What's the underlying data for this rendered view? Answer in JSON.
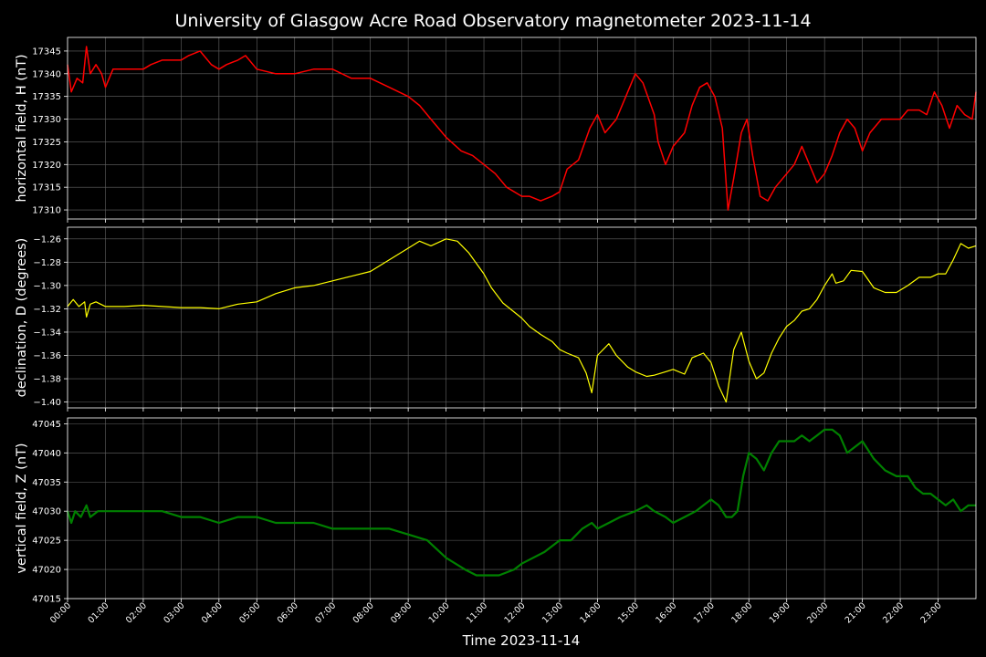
{
  "title": "University of Glasgow Acre Road Observatory magnetometer 2023-11-14",
  "xlabel": "Time 2023-11-14",
  "x_ticks": [
    "00:00",
    "01:00",
    "02:00",
    "03:00",
    "04:00",
    "05:00",
    "06:00",
    "07:00",
    "08:00",
    "09:00",
    "10:00",
    "11:00",
    "12:00",
    "13:00",
    "14:00",
    "15:00",
    "16:00",
    "17:00",
    "18:00",
    "19:00",
    "20:00",
    "21:00",
    "22:00",
    "23:00"
  ],
  "colors": {
    "background": "#000000",
    "axes": "#ffffff",
    "grid": "#666666",
    "H": "#ff0000",
    "D": "#ffff00",
    "Z": "#008000"
  },
  "chart_data": [
    {
      "type": "line",
      "ylabel": "horizontal field, H (nT)",
      "xlim": [
        0,
        24
      ],
      "ylim": [
        17308,
        17348
      ],
      "yticks": [
        17310,
        17315,
        17320,
        17325,
        17330,
        17335,
        17340,
        17345
      ],
      "grid": true,
      "series": [
        {
          "color": "#ff0000",
          "x": [
            0,
            0.1,
            0.25,
            0.4,
            0.5,
            0.6,
            0.75,
            0.9,
            1.0,
            1.2,
            1.5,
            1.8,
            2.0,
            2.2,
            2.5,
            2.8,
            3.0,
            3.2,
            3.5,
            3.8,
            4.0,
            4.2,
            4.5,
            4.7,
            5.0,
            5.5,
            6.0,
            6.5,
            7.0,
            7.5,
            8.0,
            8.5,
            9.0,
            9.3,
            9.6,
            10.0,
            10.4,
            10.7,
            11.0,
            11.3,
            11.6,
            12.0,
            12.2,
            12.5,
            12.8,
            13.0,
            13.2,
            13.5,
            13.8,
            14.0,
            14.2,
            14.5,
            14.8,
            15.0,
            15.2,
            15.5,
            15.6,
            15.8,
            16.0,
            16.3,
            16.5,
            16.7,
            16.9,
            17.1,
            17.3,
            17.45,
            17.6,
            17.8,
            17.95,
            18.1,
            18.3,
            18.5,
            18.7,
            19.0,
            19.2,
            19.4,
            19.6,
            19.8,
            20.0,
            20.2,
            20.4,
            20.6,
            20.8,
            21.0,
            21.2,
            21.5,
            21.8,
            22.0,
            22.2,
            22.5,
            22.7,
            22.9,
            23.1,
            23.3,
            23.5,
            23.7,
            23.9,
            24.0
          ],
          "y": [
            17342,
            17336,
            17339,
            17338,
            17346,
            17340,
            17342,
            17340,
            17337,
            17341,
            17341,
            17341,
            17341,
            17342,
            17343,
            17343,
            17343,
            17344,
            17345,
            17342,
            17341,
            17342,
            17343,
            17344,
            17341,
            17340,
            17340,
            17341,
            17341,
            17339,
            17339,
            17337,
            17335,
            17333,
            17330,
            17326,
            17323,
            17322,
            17320,
            17318,
            17315,
            17313,
            17313,
            17312,
            17313,
            17314,
            17319,
            17321,
            17328,
            17331,
            17327,
            17330,
            17336,
            17340,
            17338,
            17331,
            17325,
            17320,
            17324,
            17327,
            17333,
            17337,
            17338,
            17335,
            17328,
            17310,
            17317,
            17327,
            17330,
            17322,
            17313,
            17312,
            17315,
            17318,
            17320,
            17324,
            17320,
            17316,
            17318,
            17322,
            17327,
            17330,
            17328,
            17323,
            17327,
            17330,
            17330,
            17330,
            17332,
            17332,
            17331,
            17336,
            17333,
            17328,
            17333,
            17331,
            17330,
            17336
          ],
          "linewidth": 1.5
        }
      ]
    },
    {
      "type": "line",
      "ylabel": "declination, D (degrees)",
      "xlim": [
        0,
        24
      ],
      "ylim": [
        -1.405,
        -1.25
      ],
      "yticks": [
        -1.4,
        -1.38,
        -1.36,
        -1.34,
        -1.32,
        -1.3,
        -1.28,
        -1.26
      ],
      "yticklabels": [
        "−1.40",
        "−1.38",
        "−1.36",
        "−1.34",
        "−1.32",
        "−1.30",
        "−1.28",
        "−1.26"
      ],
      "grid": true,
      "series": [
        {
          "color": "#ffff00",
          "x": [
            0,
            0.15,
            0.3,
            0.45,
            0.5,
            0.6,
            0.75,
            1.0,
            1.5,
            2.0,
            2.5,
            3.0,
            3.5,
            4.0,
            4.5,
            5.0,
            5.5,
            6.0,
            6.5,
            7.0,
            7.5,
            8.0,
            8.5,
            9.0,
            9.3,
            9.6,
            10.0,
            10.3,
            10.6,
            11.0,
            11.2,
            11.5,
            12.0,
            12.2,
            12.5,
            12.8,
            13.0,
            13.2,
            13.5,
            13.7,
            13.85,
            14.0,
            14.3,
            14.5,
            14.8,
            15.0,
            15.3,
            15.5,
            15.8,
            16.0,
            16.3,
            16.5,
            16.8,
            17.0,
            17.2,
            17.4,
            17.6,
            17.8,
            18.0,
            18.2,
            18.4,
            18.6,
            18.8,
            19.0,
            19.2,
            19.4,
            19.6,
            19.8,
            20.0,
            20.2,
            20.3,
            20.5,
            20.7,
            21.0,
            21.3,
            21.6,
            21.9,
            22.2,
            22.5,
            22.8,
            23.0,
            23.2,
            23.4,
            23.6,
            23.8,
            24.0
          ],
          "y": [
            -1.318,
            -1.312,
            -1.318,
            -1.314,
            -1.327,
            -1.316,
            -1.314,
            -1.318,
            -1.318,
            -1.317,
            -1.318,
            -1.319,
            -1.319,
            -1.32,
            -1.316,
            -1.314,
            -1.307,
            -1.302,
            -1.3,
            -1.296,
            -1.292,
            -1.288,
            -1.278,
            -1.268,
            -1.262,
            -1.266,
            -1.26,
            -1.262,
            -1.272,
            -1.29,
            -1.302,
            -1.315,
            -1.328,
            -1.335,
            -1.342,
            -1.348,
            -1.355,
            -1.358,
            -1.362,
            -1.375,
            -1.392,
            -1.36,
            -1.35,
            -1.36,
            -1.37,
            -1.374,
            -1.378,
            -1.377,
            -1.374,
            -1.372,
            -1.376,
            -1.362,
            -1.358,
            -1.366,
            -1.386,
            -1.4,
            -1.355,
            -1.34,
            -1.365,
            -1.38,
            -1.375,
            -1.358,
            -1.345,
            -1.335,
            -1.33,
            -1.322,
            -1.32,
            -1.312,
            -1.3,
            -1.29,
            -1.298,
            -1.296,
            -1.287,
            -1.288,
            -1.302,
            -1.306,
            -1.306,
            -1.3,
            -1.293,
            -1.293,
            -1.29,
            -1.29,
            -1.278,
            -1.264,
            -1.268,
            -1.266
          ],
          "linewidth": 1.2
        }
      ]
    },
    {
      "type": "line",
      "ylabel": "vertical field, Z (nT)",
      "xlim": [
        0,
        24
      ],
      "ylim": [
        47015,
        47046
      ],
      "yticks": [
        47015,
        47020,
        47025,
        47030,
        47035,
        47040,
        47045
      ],
      "grid": true,
      "series": [
        {
          "color": "#008000",
          "x": [
            0,
            0.1,
            0.2,
            0.35,
            0.5,
            0.6,
            0.8,
            1.0,
            1.5,
            2.0,
            2.5,
            3.0,
            3.5,
            4.0,
            4.5,
            5.0,
            5.5,
            6.0,
            6.5,
            7.0,
            7.5,
            8.0,
            8.5,
            9.0,
            9.5,
            10.0,
            10.5,
            10.8,
            11.0,
            11.4,
            11.8,
            12.0,
            12.3,
            12.6,
            13.0,
            13.3,
            13.6,
            13.85,
            14.0,
            14.3,
            14.6,
            15.0,
            15.3,
            15.5,
            15.8,
            16.0,
            16.3,
            16.6,
            16.8,
            17.0,
            17.2,
            17.4,
            17.55,
            17.7,
            17.85,
            18.0,
            18.2,
            18.4,
            18.6,
            18.8,
            19.0,
            19.2,
            19.4,
            19.6,
            19.8,
            20.0,
            20.2,
            20.4,
            20.6,
            20.8,
            21.0,
            21.3,
            21.6,
            21.9,
            22.2,
            22.4,
            22.6,
            22.8,
            23.0,
            23.2,
            23.4,
            23.6,
            23.8,
            24.0
          ],
          "y": [
            47030,
            47028,
            47030,
            47029,
            47031,
            47029,
            47030,
            47030,
            47030,
            47030,
            47030,
            47029,
            47029,
            47028,
            47029,
            47029,
            47028,
            47028,
            47028,
            47027,
            47027,
            47027,
            47027,
            47026,
            47025,
            47022,
            47020,
            47019,
            47019,
            47019,
            47020,
            47021,
            47022,
            47023,
            47025,
            47025,
            47027,
            47028,
            47027,
            47028,
            47029,
            47030,
            47031,
            47030,
            47029,
            47028,
            47029,
            47030,
            47031,
            47032,
            47031,
            47029,
            47029,
            47030,
            47036,
            47040,
            47039,
            47037,
            47040,
            47042,
            47042,
            47042,
            47043,
            47042,
            47043,
            47044,
            47044,
            47043,
            47040,
            47041,
            47042,
            47039,
            47037,
            47036,
            47036,
            47034,
            47033,
            47033,
            47032,
            47031,
            47032,
            47030,
            47031,
            47031
          ],
          "linewidth": 2.2
        }
      ]
    }
  ]
}
